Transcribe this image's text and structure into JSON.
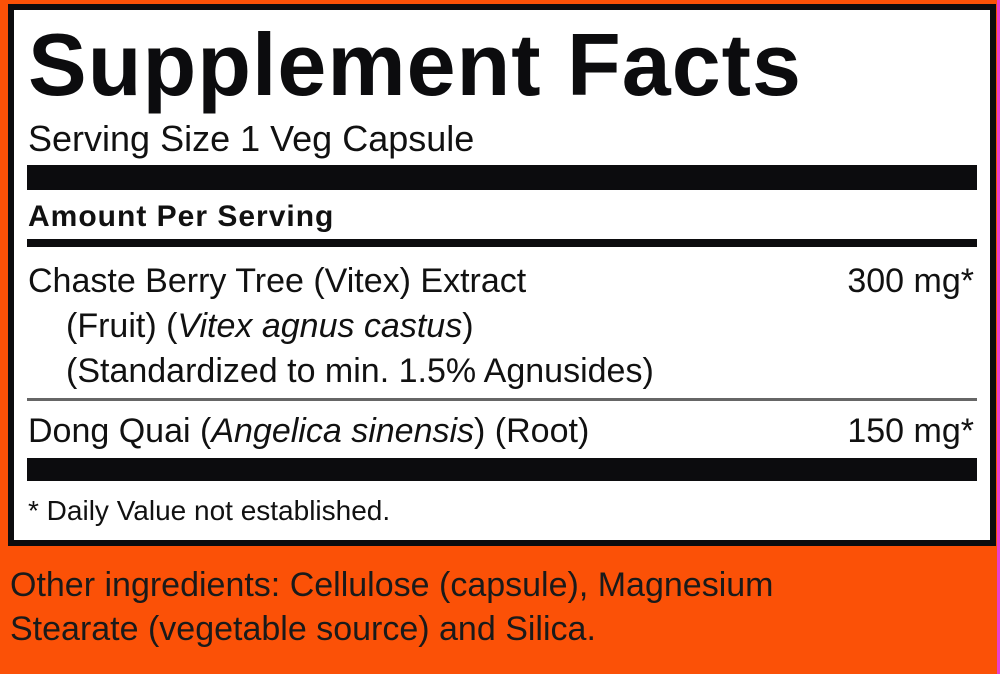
{
  "title": "Supplement Facts",
  "serving_size": "Serving Size 1 Veg Capsule",
  "amount_header": "Amount Per Serving",
  "ingredients": [
    {
      "name": "Chaste Berry Tree (Vitex) Extract",
      "sub1_pre": "(Fruit) (",
      "sub1_italic": "Vitex agnus castus",
      "sub1_post": ")",
      "sub2": "(Standardized to min. 1.5% Agnusides)",
      "amount": "300 mg*"
    },
    {
      "name_pre": "Dong Quai (",
      "name_italic": "Angelica sinensis",
      "name_post": ") (Root)",
      "amount": "150 mg*"
    }
  ],
  "footnote": "* Daily Value not established.",
  "other_ingredients": {
    "line1": "Other ingredients: Cellulose (capsule), Magnesium",
    "line2": "Stearate (vegetable source) and Silica."
  },
  "colors": {
    "background": "#fb5107",
    "border": "#0c0c0e"
  }
}
